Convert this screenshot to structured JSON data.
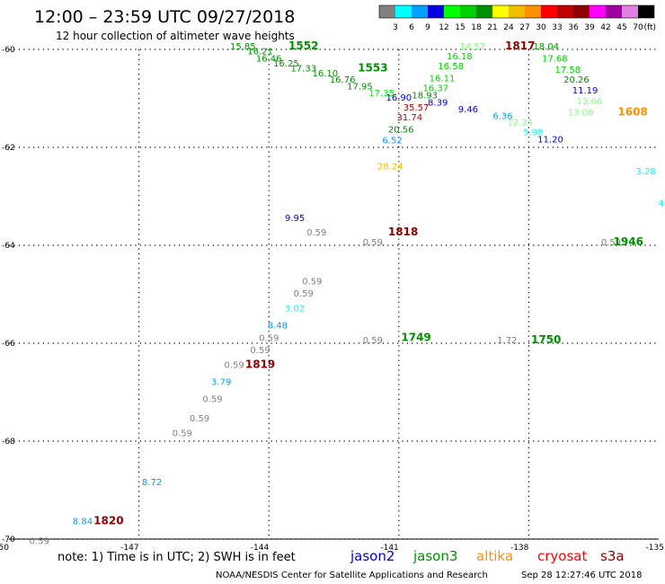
{
  "header": {
    "title": "12:00 – 23:59 UTC 09/27/2018",
    "subtitle": "12 hour collection of altimeter wave heights"
  },
  "colorbar": {
    "colors": [
      "#808080",
      "#00ffff",
      "#00a0ff",
      "#0000e0",
      "#00ff00",
      "#00d000",
      "#009000",
      "#ffff00",
      "#f0c000",
      "#ff9000",
      "#ff0000",
      "#c00000",
      "#900000",
      "#ff00ff",
      "#a000a0",
      "#e080e0",
      "#000000"
    ],
    "labels": [
      "3",
      "6",
      "9",
      "12",
      "15",
      "18",
      "21",
      "24",
      "27",
      "30",
      "33",
      "36",
      "39",
      "42",
      "45",
      "70"
    ],
    "unit": "(ft)"
  },
  "chart_data": {
    "type": "scatter",
    "title": "12:00 – 23:59 UTC 09/27/2018",
    "subtitle": "12 hour collection of altimeter wave heights",
    "xlim": [
      -150,
      -135
    ],
    "ylim": [
      -70,
      -60
    ],
    "x_ticks": [
      "-150",
      "-147",
      "-144",
      "-141",
      "-138",
      "-135"
    ],
    "y_ticks": [
      "-60",
      "-62",
      "-64",
      "-66",
      "-68",
      "-70"
    ],
    "grid": true,
    "swh_points": [
      {
        "lon": -144.6,
        "lat": -60.0,
        "text": "15.85",
        "color": "#009000"
      },
      {
        "lon": -144.2,
        "lat": -60.1,
        "text": "16.21",
        "color": "#009000"
      },
      {
        "lon": -144.0,
        "lat": -60.25,
        "text": "16.46",
        "color": "#009000"
      },
      {
        "lon": -143.6,
        "lat": -60.35,
        "text": "16.25",
        "color": "#009000"
      },
      {
        "lon": -143.2,
        "lat": -60.45,
        "text": "17.33",
        "color": "#009000"
      },
      {
        "lon": -142.7,
        "lat": -60.55,
        "text": "16.10",
        "color": "#009000"
      },
      {
        "lon": -142.3,
        "lat": -60.68,
        "text": "16.76",
        "color": "#009000"
      },
      {
        "lon": -141.9,
        "lat": -60.82,
        "text": "17.95",
        "color": "#009000"
      },
      {
        "lon": -141.4,
        "lat": -60.95,
        "text": "17.35",
        "color": "#00ff00"
      },
      {
        "lon": -141.0,
        "lat": -61.05,
        "text": "16.90",
        "color": "#0000e0"
      },
      {
        "lon": -140.6,
        "lat": -61.25,
        "text": "35.57",
        "color": "#c00000"
      },
      {
        "lon": -140.75,
        "lat": -61.45,
        "text": "31.74",
        "color": "#c00000"
      },
      {
        "lon": -140.95,
        "lat": -61.7,
        "text": "20.56",
        "color": "#009000"
      },
      {
        "lon": -141.15,
        "lat": -61.92,
        "text": "6.52",
        "color": "#00a0ff"
      },
      {
        "lon": -141.2,
        "lat": -62.45,
        "text": "28.24",
        "color": "#f0c000"
      },
      {
        "lon": -139.3,
        "lat": -60.0,
        "text": "14.57",
        "color": "#80ff80"
      },
      {
        "lon": -139.6,
        "lat": -60.2,
        "text": "16.18",
        "color": "#00d000"
      },
      {
        "lon": -139.8,
        "lat": -60.4,
        "text": "16.58",
        "color": "#00d000"
      },
      {
        "lon": -140.0,
        "lat": -60.65,
        "text": "16.11",
        "color": "#00d000"
      },
      {
        "lon": -140.15,
        "lat": -60.85,
        "text": "16.37",
        "color": "#00d000"
      },
      {
        "lon": -140.4,
        "lat": -61.0,
        "text": "18.93",
        "color": "#009000"
      },
      {
        "lon": -140.1,
        "lat": -61.15,
        "text": "8.39",
        "color": "#0000e0"
      },
      {
        "lon": -139.4,
        "lat": -61.28,
        "text": "9.46",
        "color": "#0000e0"
      },
      {
        "lon": -138.6,
        "lat": -61.42,
        "text": "6.36",
        "color": "#00a0ff"
      },
      {
        "lon": -138.2,
        "lat": -61.55,
        "text": "12.24",
        "color": "#80ff80"
      },
      {
        "lon": -137.9,
        "lat": -61.75,
        "text": "5.98",
        "color": "#00ffff"
      },
      {
        "lon": -137.5,
        "lat": -61.9,
        "text": "11.20",
        "color": "#0000e0"
      },
      {
        "lon": -137.6,
        "lat": -60.0,
        "text": "18.04",
        "color": "#009000"
      },
      {
        "lon": -137.4,
        "lat": -60.25,
        "text": "17.68",
        "color": "#00d000"
      },
      {
        "lon": -137.1,
        "lat": -60.48,
        "text": "17.58",
        "color": "#00d000"
      },
      {
        "lon": -136.9,
        "lat": -60.68,
        "text": "20.26",
        "color": "#009000"
      },
      {
        "lon": -136.7,
        "lat": -60.9,
        "text": "11.19",
        "color": "#0000e0"
      },
      {
        "lon": -136.6,
        "lat": -61.12,
        "text": "13.66",
        "color": "#80ff80"
      },
      {
        "lon": -136.8,
        "lat": -61.35,
        "text": "13.06",
        "color": "#80ff80"
      },
      {
        "lon": -135.3,
        "lat": -62.55,
        "text": "3.28",
        "color": "#00ffff"
      },
      {
        "lon": -134.95,
        "lat": -63.2,
        "text": "4",
        "color": "#00ffff"
      },
      {
        "lon": -143.4,
        "lat": -63.5,
        "text": "9.95",
        "color": "#0000e0"
      },
      {
        "lon": -142.9,
        "lat": -63.8,
        "text": "0.59",
        "color": "#808080"
      },
      {
        "lon": -143.0,
        "lat": -64.8,
        "text": "0.59",
        "color": "#808080"
      },
      {
        "lon": -143.2,
        "lat": -65.05,
        "text": "0.59",
        "color": "#808080"
      },
      {
        "lon": -143.4,
        "lat": -65.35,
        "text": "3.02",
        "color": "#00ffff"
      },
      {
        "lon": -143.8,
        "lat": -65.7,
        "text": "8.48",
        "color": "#00a0ff"
      },
      {
        "lon": -144.0,
        "lat": -65.95,
        "text": "0.59",
        "color": "#808080"
      },
      {
        "lon": -144.2,
        "lat": -66.2,
        "text": "0.59",
        "color": "#808080"
      },
      {
        "lon": -144.8,
        "lat": -66.5,
        "text": "0.59",
        "color": "#808080"
      },
      {
        "lon": -145.1,
        "lat": -66.85,
        "text": "3.79",
        "color": "#00a0ff"
      },
      {
        "lon": -145.3,
        "lat": -67.2,
        "text": "0.59",
        "color": "#808080"
      },
      {
        "lon": -145.6,
        "lat": -67.6,
        "text": "0.59",
        "color": "#808080"
      },
      {
        "lon": -146.0,
        "lat": -67.9,
        "text": "0.59",
        "color": "#808080"
      },
      {
        "lon": -146.7,
        "lat": -68.9,
        "text": "8.72",
        "color": "#00a0ff"
      },
      {
        "lon": -148.3,
        "lat": -69.7,
        "text": "8.84",
        "color": "#00a0ff"
      },
      {
        "lon": -149.3,
        "lat": -70.1,
        "text": "0.59",
        "color": "#808080"
      },
      {
        "lon": -141.6,
        "lat": -64.0,
        "text": "0.59",
        "color": "#808080"
      },
      {
        "lon": -141.6,
        "lat": -66.0,
        "text": "0.59",
        "color": "#808080"
      },
      {
        "lon": -138.5,
        "lat": -66.0,
        "text": "1.72",
        "color": "#808080"
      },
      {
        "lon": -136.1,
        "lat": -64.0,
        "text": "0.59",
        "color": "#808080"
      }
    ],
    "time_labels": [
      {
        "lon": -143.2,
        "lat": -60.0,
        "text": "1552",
        "color": "#009000"
      },
      {
        "lon": -141.6,
        "lat": -60.45,
        "text": "1553",
        "color": "#009000"
      },
      {
        "lon": -138.2,
        "lat": -60.0,
        "text": "1817",
        "color": "#900000"
      },
      {
        "lon": -135.6,
        "lat": -61.35,
        "text": "1608",
        "color": "#ff9000"
      },
      {
        "lon": -135.7,
        "lat": -64.0,
        "text": "1946",
        "color": "#009000"
      },
      {
        "lon": -140.9,
        "lat": -63.8,
        "text": "1818",
        "color": "#900000"
      },
      {
        "lon": -140.6,
        "lat": -65.95,
        "text": "1749",
        "color": "#009000"
      },
      {
        "lon": -137.6,
        "lat": -66.0,
        "text": "1750",
        "color": "#009000"
      },
      {
        "lon": -144.2,
        "lat": -66.5,
        "text": "1819",
        "color": "#900000"
      },
      {
        "lon": -147.7,
        "lat": -69.7,
        "text": "1820",
        "color": "#900000"
      }
    ]
  },
  "footer": {
    "note": "note: 1) Time is in UTC; 2) SWH is in feet",
    "legend": [
      {
        "name": "jason2",
        "color": "#0000e0"
      },
      {
        "name": "jason3",
        "color": "#009000"
      },
      {
        "name": "altika",
        "color": "#ff9000"
      },
      {
        "name": "cryosat",
        "color": "#ff0000"
      },
      {
        "name": "s3a",
        "color": "#900000"
      }
    ],
    "credit": "NOAA/NESDIS Center for Satellite Applications and Research",
    "timestamp": "Sep 28 12:27:46 UTC 2018"
  }
}
